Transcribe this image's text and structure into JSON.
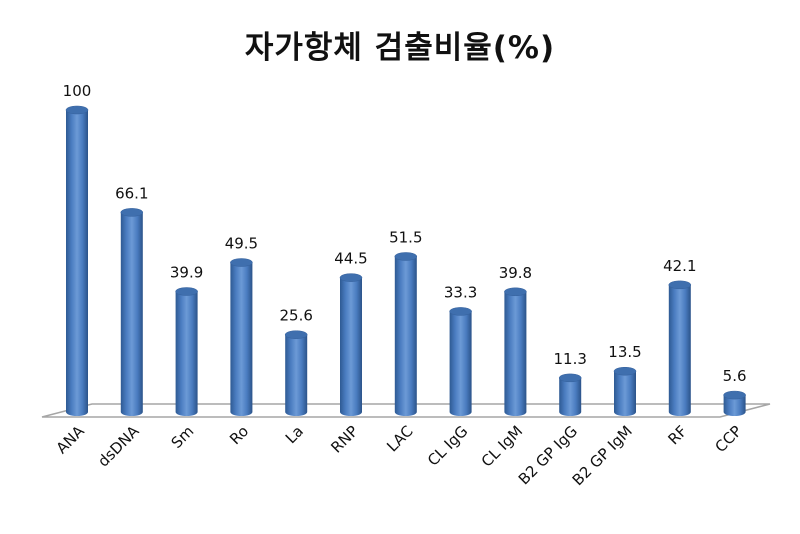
{
  "title": "자가항체 검출비율(%)",
  "chart_data": {
    "type": "bar",
    "style": "3d-cylinder",
    "title": "자가항체 검출비율(%)",
    "xlabel": "",
    "ylabel": "",
    "ylim": [
      0,
      100
    ],
    "grid": false,
    "legend": null,
    "bar_color": "#4F81BD",
    "categories": [
      "ANA",
      "dsDNA",
      "Sm",
      "Ro",
      "La",
      "RNP",
      "LAC",
      "CL IgG",
      "CL IgM",
      "B2 GP IgG",
      "B2 GP IgM",
      "RF",
      "CCP"
    ],
    "values": [
      100,
      66.1,
      39.9,
      49.5,
      25.6,
      44.5,
      51.5,
      33.3,
      39.8,
      11.3,
      13.5,
      42.1,
      5.6
    ],
    "value_labels": [
      "100",
      "66.1",
      "39.9",
      "49.5",
      "25.6",
      "44.5",
      "51.5",
      "33.3",
      "39.8",
      "11.3",
      "13.5",
      "42.1",
      "5.6"
    ]
  }
}
